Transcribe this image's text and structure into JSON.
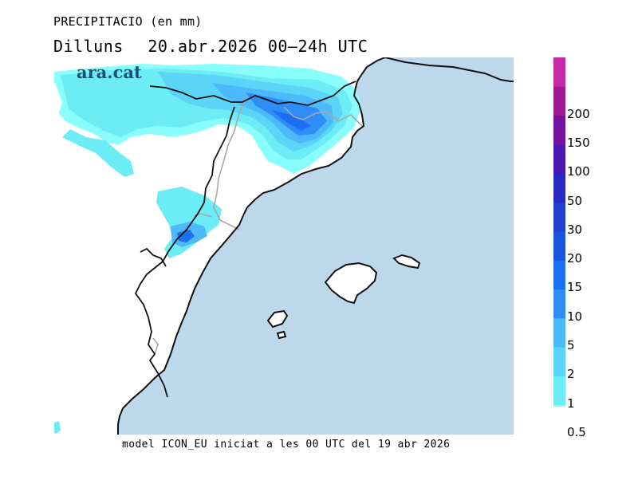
{
  "header": {
    "title": "PRECIPITACIO (en mm)",
    "day": "Dilluns",
    "period": "20.abr.2026 00–24h UTC"
  },
  "brand": {
    "logo_text": "ara.cat",
    "logo_color": "#1b4f7a"
  },
  "footer": {
    "model_text": "model ICON_EU iniciat a les 00 UTC del 19 abr 2026"
  },
  "colors": {
    "sea": "#bcd8ea",
    "land": "#ffffff",
    "coast": "#111111",
    "border": "#a8a8a8"
  },
  "legend": {
    "unit": "mm",
    "items": [
      {
        "label": "0.5",
        "color": "#8afdfd"
      },
      {
        "label": "1",
        "color": "#6cecf5"
      },
      {
        "label": "2",
        "color": "#5ad4f7"
      },
      {
        "label": "5",
        "color": "#4bb9fa"
      },
      {
        "label": "10",
        "color": "#2f8df7"
      },
      {
        "label": "15",
        "color": "#1c6ff2"
      },
      {
        "label": "20",
        "color": "#1a55e0"
      },
      {
        "label": "30",
        "color": "#1f3fce"
      },
      {
        "label": "50",
        "color": "#2b29c1"
      },
      {
        "label": "100",
        "color": "#4a17b0"
      },
      {
        "label": "150",
        "color": "#74129f"
      },
      {
        "label": "200",
        "color": "#9c1a92"
      },
      {
        "label": "",
        "color": "#c72aa9"
      }
    ]
  }
}
